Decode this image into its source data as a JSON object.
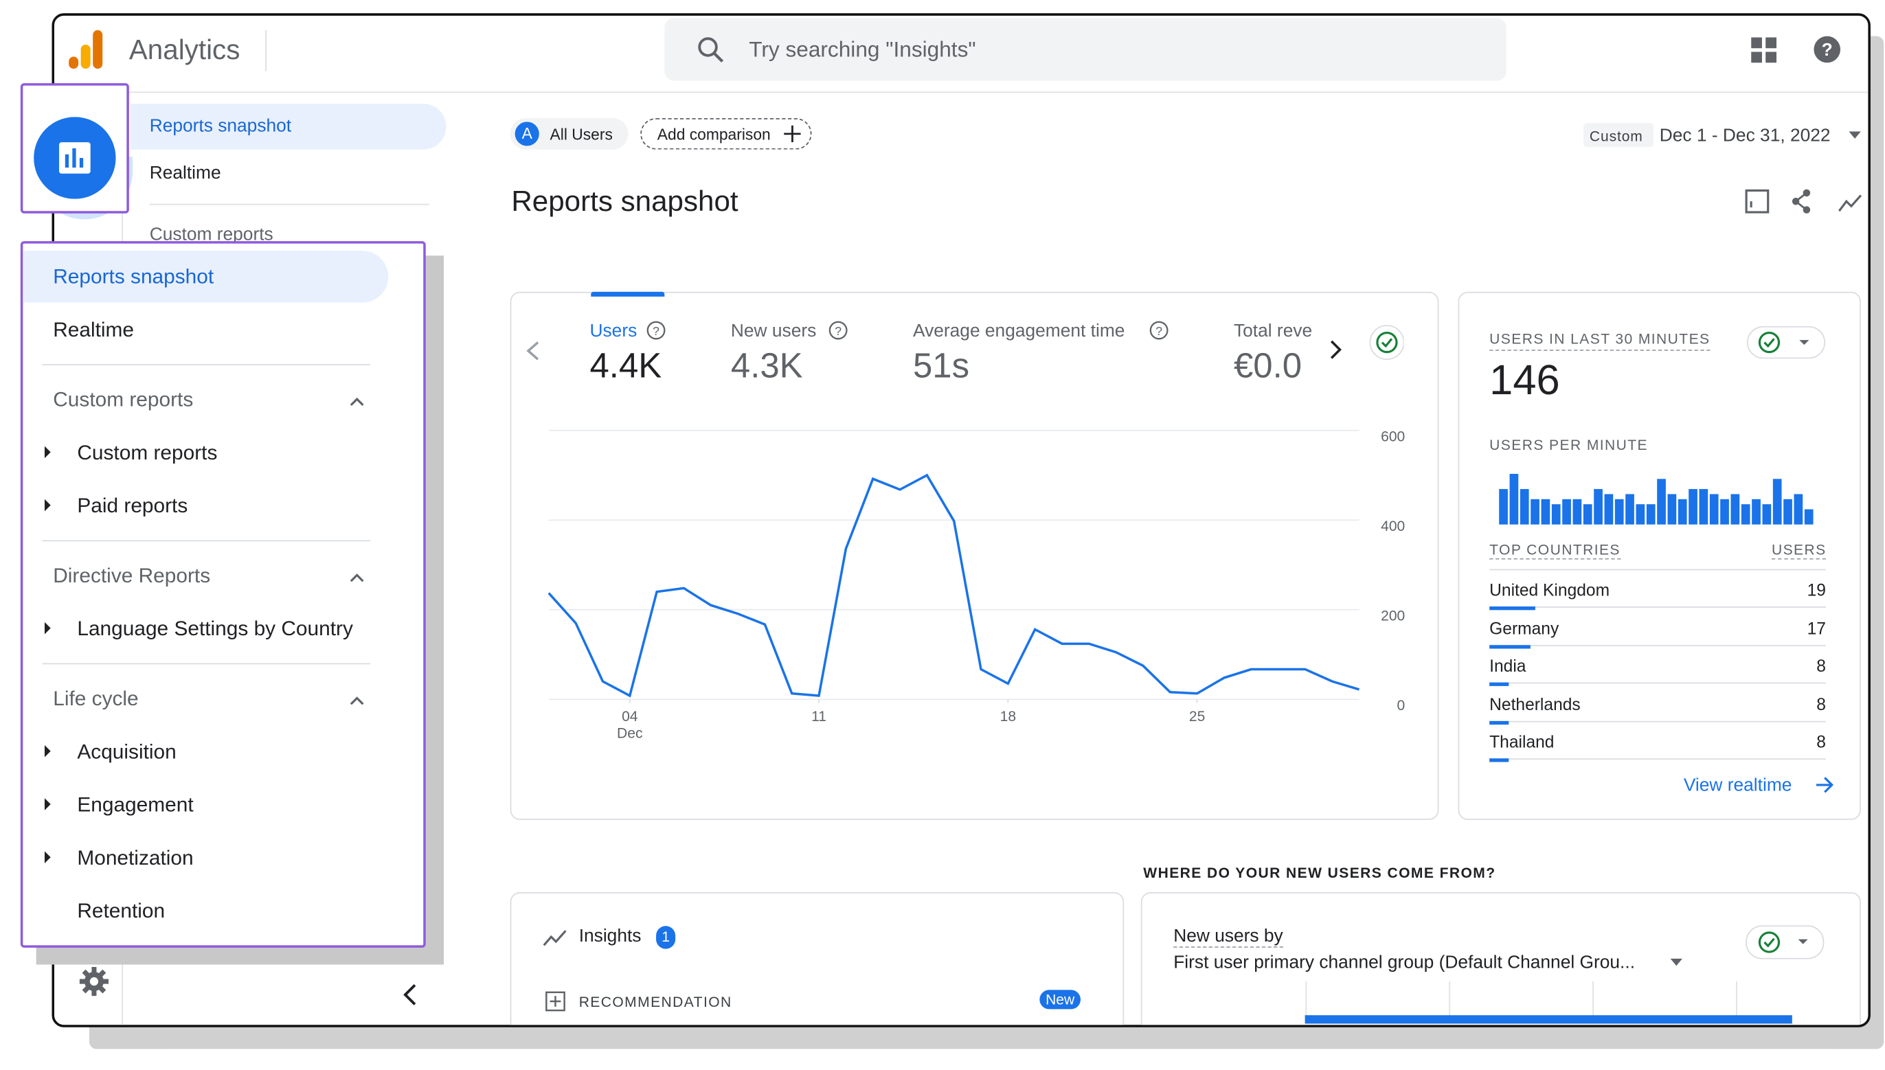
{
  "header": {
    "product": "Analytics",
    "search_placeholder": "Try searching \"Insights\""
  },
  "back_nav": {
    "items": [
      "Reports snapshot",
      "Realtime",
      "Custom reports"
    ]
  },
  "menu": {
    "top": [
      "Reports snapshot",
      "Realtime"
    ],
    "sections": [
      {
        "title": "Custom reports",
        "items": [
          "Custom reports",
          "Paid reports"
        ]
      },
      {
        "title": "Directive Reports",
        "items": [
          "Language Settings by Country"
        ]
      },
      {
        "title": "Life cycle",
        "items": [
          "Acquisition",
          "Engagement",
          "Monetization",
          "Retention"
        ]
      }
    ]
  },
  "toolbar": {
    "segment_badge": "A",
    "segment": "All Users",
    "add_comparison": "Add comparison",
    "date_label": "Custom",
    "date_range": "Dec 1 - Dec 31, 2022"
  },
  "page_title": "Reports snapshot",
  "metrics": [
    {
      "label": "Users",
      "value": "4.4K"
    },
    {
      "label": "New users",
      "value": "4.3K"
    },
    {
      "label": "Average engagement time",
      "value": "51s"
    },
    {
      "label": "Total reve",
      "value": "€0.0"
    }
  ],
  "chart_data": [
    {
      "type": "line",
      "x": [
        1,
        2,
        3,
        4,
        5,
        6,
        7,
        8,
        9,
        10,
        11,
        12,
        13,
        14,
        15,
        16,
        17,
        18,
        19,
        20,
        21,
        22,
        23,
        24,
        25,
        26,
        27,
        28,
        29,
        30,
        31
      ],
      "series": [
        {
          "name": "Users",
          "color": "#1a73e8",
          "values": [
            237,
            170,
            40,
            8,
            240,
            248,
            210,
            191,
            167,
            13,
            8,
            336,
            492,
            468,
            500,
            398,
            67,
            35,
            156,
            124,
            124,
            105,
            75,
            16,
            13,
            48,
            67,
            67,
            67,
            40,
            22
          ]
        }
      ],
      "xlim": [
        1,
        31
      ],
      "xticks": [
        {
          "value": 4,
          "label": "04"
        },
        {
          "value": 11,
          "label": "11"
        },
        {
          "value": 18,
          "label": "18"
        },
        {
          "value": 25,
          "label": "25"
        }
      ],
      "x_sub_label": "Dec",
      "ylim": [
        0,
        600
      ],
      "yticks": [
        0,
        200,
        400,
        600
      ],
      "grid": true
    },
    {
      "type": "bar",
      "title": "USERS PER MINUTE",
      "color": "#1a73e8",
      "values": [
        7,
        10,
        7,
        5,
        5,
        4,
        5,
        5,
        4,
        7,
        6,
        5,
        6,
        4,
        4,
        9,
        6,
        5,
        7,
        7,
        6,
        5,
        6,
        4,
        5,
        4,
        9,
        5,
        6,
        3
      ]
    }
  ],
  "realtime": {
    "title": "USERS IN LAST 30 MINUTES",
    "value": "146",
    "table_header": [
      "TOP COUNTRIES",
      "USERS"
    ],
    "countries": [
      {
        "name": "United Kingdom",
        "users": 19
      },
      {
        "name": "Germany",
        "users": 17
      },
      {
        "name": "India",
        "users": 8
      },
      {
        "name": "Netherlands",
        "users": 8
      },
      {
        "name": "Thailand",
        "users": 8
      }
    ],
    "link": "View realtime"
  },
  "sources_heading": "WHERE DO YOUR NEW USERS COME FROM?",
  "insights": {
    "title": "Insights",
    "count": "1",
    "recommendation": "RECOMMENDATION",
    "badge": "New"
  },
  "new_users_card": {
    "title": "New users by",
    "dimension": "First user primary channel group (Default Channel Grou..."
  }
}
